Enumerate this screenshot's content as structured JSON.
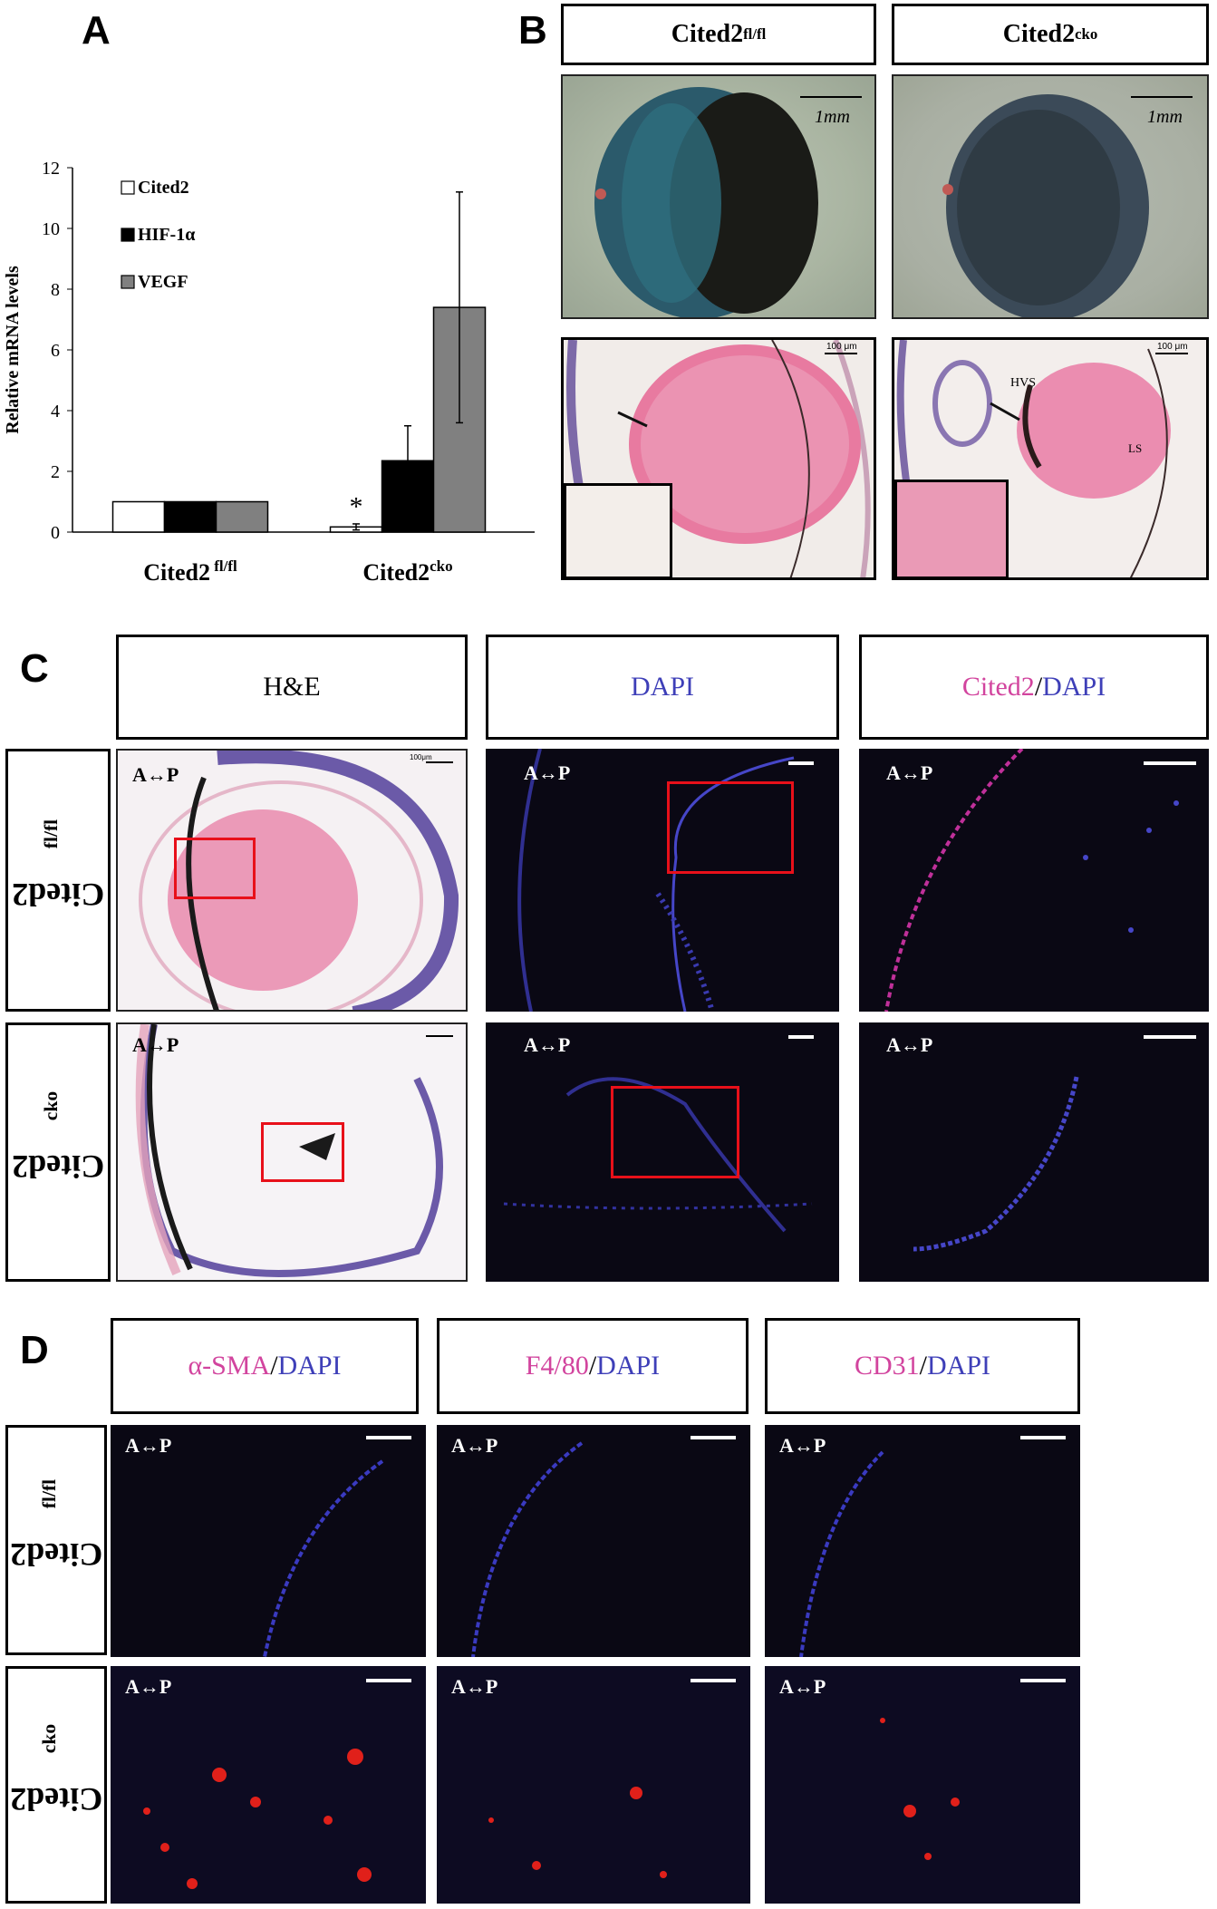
{
  "panels": {
    "a": "A",
    "b": "B",
    "c": "C",
    "d": "D"
  },
  "chart_data": {
    "type": "bar",
    "categories": [
      "Cited2 fl/fl",
      "Cited2cko"
    ],
    "category_labels": [
      {
        "base": "Cited2",
        "sup": " fl/fl"
      },
      {
        "base": "Cited2",
        "sup": "cko"
      }
    ],
    "series": [
      {
        "name": "Cited2",
        "color": "#ffffff",
        "values": [
          1.0,
          0.17
        ],
        "errors": [
          0,
          0.1
        ]
      },
      {
        "name": "HIF-1α",
        "color": "#000000",
        "values": [
          1.0,
          2.35
        ],
        "errors": [
          0,
          1.15
        ]
      },
      {
        "name": "VEGF",
        "color": "#808080",
        "values": [
          1.0,
          7.4
        ],
        "errors": [
          0,
          3.8
        ]
      }
    ],
    "ylabel": "Relative mRNA levels",
    "ylim": [
      0,
      12
    ],
    "yticks": [
      0,
      2,
      4,
      6,
      8,
      10,
      12
    ],
    "annotation": "*",
    "legend_position": "top-left"
  },
  "panel_b": {
    "genotype_fl": {
      "base": "Cited2",
      "sup": "fl/fl"
    },
    "genotype_cko": {
      "base": "Cited2",
      "sup": "cko"
    },
    "scale_1mm": "1mm",
    "scale_100um": "100 μm",
    "hvs": "HVS",
    "ls": "LS"
  },
  "panel_c": {
    "col_he": "H&E",
    "col_dapi": "DAPI",
    "col_cited2": "Cited2",
    "slash": "/",
    "dapi": "DAPI",
    "row_fl": {
      "base": "Cited2",
      "sup": "fl/fl"
    },
    "row_cko": {
      "base": "Cited2",
      "sup": "cko"
    },
    "ap": "A↔P",
    "scale_100um": "100μm"
  },
  "panel_d": {
    "col_sma": "α-SMA",
    "col_f480": "F4/80",
    "col_cd31": "CD31",
    "slash": "/",
    "dapi": "DAPI",
    "row_fl": {
      "base": "Cited2",
      "sup": "fl/fl"
    },
    "row_cko": {
      "base": "Cited2",
      "sup": "cko"
    },
    "ap": "A↔P"
  }
}
